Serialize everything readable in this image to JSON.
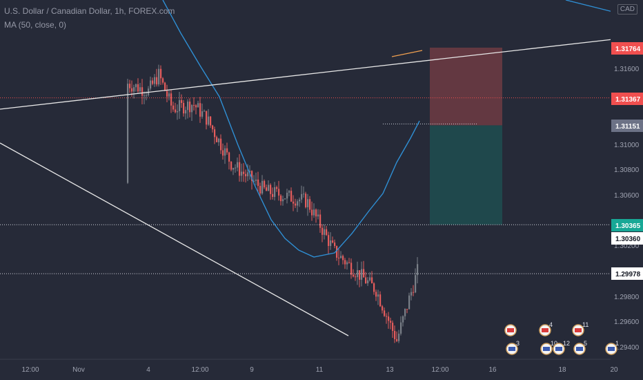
{
  "header": {
    "title": "U.S. Dollar / Canadian Dollar, 1h, FOREX.com",
    "indicator": "MA (50, close, 0)",
    "currency": "CAD"
  },
  "colors": {
    "background": "#262a38",
    "up_candle": "#7a8088",
    "down_candle": "#e45c5c",
    "ma_line": "#2f8fd4",
    "trend_line": "#e8e8e8",
    "stop_zone": "#6a3a42",
    "target_zone": "#1f4a4d",
    "price_red": "#f04f4f",
    "price_teal": "#18a896",
    "price_gray": "#6c7286",
    "axis_text": "#a0a4b2"
  },
  "chart_data": {
    "type": "candlestick",
    "title": "U.S. Dollar / Canadian Dollar, 1h, FOREX.com",
    "y_axis_ticks": [
      "1.31600",
      "1.31000",
      "1.30800",
      "1.30600",
      "1.30200",
      "1.29800",
      "1.29600",
      "1.29400"
    ],
    "x_axis_ticks": [
      "12:00",
      "Nov",
      "4",
      "12:00",
      "9",
      "11",
      "13",
      "12:00",
      "16",
      "18",
      "20"
    ],
    "price_labels": [
      {
        "value": "1.31764",
        "style": "red"
      },
      {
        "value": "1.31367",
        "style": "red"
      },
      {
        "value": "1.31151",
        "style": "gray"
      },
      {
        "value": "1.30365",
        "style": "teal"
      },
      {
        "value": "1.30360",
        "style": "white"
      },
      {
        "value": "1.29978",
        "style": "white"
      }
    ],
    "position_tool": {
      "entry": 1.3115,
      "stop": 1.31764,
      "target": 1.30365
    },
    "events": [
      {
        "flag": "CA",
        "count": ""
      },
      {
        "flag": "US",
        "count": "3"
      },
      {
        "flag": "CA",
        "count": "4"
      },
      {
        "flag": "US",
        "count": "10"
      },
      {
        "flag": "US",
        "count": "12"
      },
      {
        "flag": "CA",
        "count": "11"
      },
      {
        "flag": "US",
        "count": "5"
      },
      {
        "flag": "US",
        "count": "1"
      }
    ],
    "grid": false
  }
}
